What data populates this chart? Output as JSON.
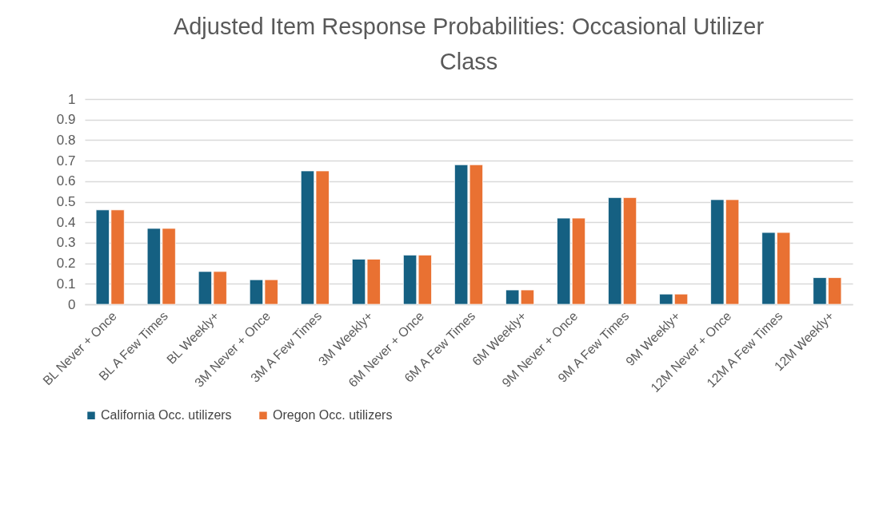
{
  "chart_data": {
    "type": "bar",
    "title": "Adjusted Item Response Probabilities: Occasional Utilizer Class",
    "categories": [
      "BL Never + Once",
      "BL A Few Times",
      "BL Weekly+",
      "3M Never + Once",
      "3M A Few Times",
      "3M Weekly+",
      "6M Never + Once",
      "6M A Few Times",
      "6M Weekly+",
      "9M Never + Once",
      "9M A Few Times",
      "9M Weekly+",
      "12M Never + Once",
      "12M A Few Times",
      "12M Weekly+"
    ],
    "series": [
      {
        "name": "California Occ. utilizers",
        "color": "#156082",
        "values": [
          0.46,
          0.37,
          0.16,
          0.12,
          0.65,
          0.22,
          0.24,
          0.68,
          0.07,
          0.42,
          0.52,
          0.05,
          0.51,
          0.35,
          0.13
        ]
      },
      {
        "name": "Oregon Occ. utilizers",
        "color": "#e97132",
        "values": [
          0.46,
          0.37,
          0.16,
          0.12,
          0.65,
          0.22,
          0.24,
          0.68,
          0.07,
          0.42,
          0.52,
          0.05,
          0.51,
          0.35,
          0.13
        ]
      }
    ],
    "ylim": [
      0,
      1
    ],
    "yticks": [
      0,
      0.1,
      0.2,
      0.3,
      0.4,
      0.5,
      0.6,
      0.7,
      0.8,
      0.9,
      1
    ],
    "grid": "y",
    "legend": "bottom"
  }
}
